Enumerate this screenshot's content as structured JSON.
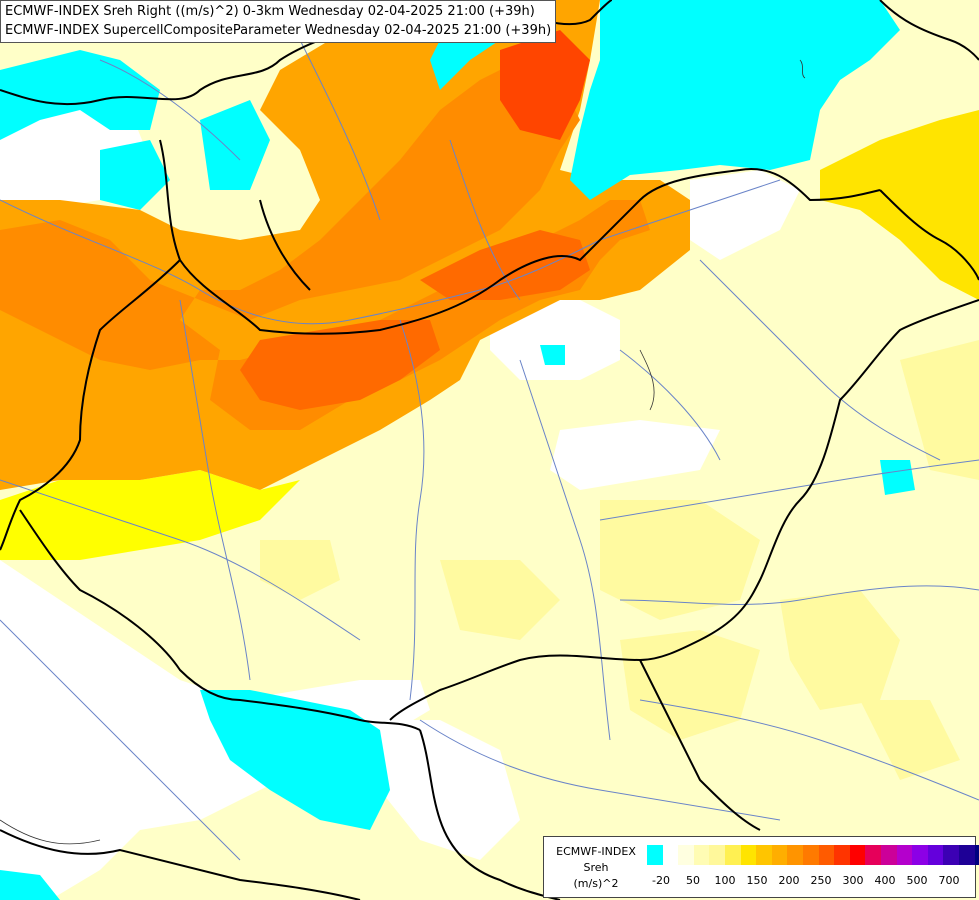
{
  "map": {
    "title_line1": "ECMWF-INDEX Sreh Right ((m/s)^2) 0-3km Wednesday 02-04-2025 21:00 (+39h)",
    "title_line2": "ECMWF-INDEX SupercellCompositeParameter Wednesday 02-04-2025 21:00 (+39h)"
  },
  "legend": {
    "model": "ECMWF-INDEX",
    "variable": "Sreh",
    "unit": "(m/s)^2",
    "ticks": [
      "-20",
      "50",
      "100",
      "150",
      "200",
      "250",
      "300",
      "400",
      "500",
      "700"
    ],
    "colors": [
      "#00ffff",
      "#ffffff",
      "#ffffe0",
      "#fffcb4",
      "#fff89b",
      "#fff052",
      "#ffe400",
      "#ffc500",
      "#ffae00",
      "#ff9400",
      "#ff7a00",
      "#ff5b00",
      "#ff3400",
      "#ff0000",
      "#e6005a",
      "#cc0099",
      "#b400cc",
      "#8c00e6",
      "#6400dc",
      "#3c00b4",
      "#1e0096",
      "#000080"
    ]
  },
  "colors": {
    "cyan": "#00ffff",
    "white": "#ffffff",
    "pale_yellow": "#ffffc8",
    "light_yellow": "#fffaa0",
    "yellow": "#ffff00",
    "yellow_orange": "#ffd700",
    "orange_light": "#ffa500",
    "orange": "#ff8c00",
    "orange_dark": "#ff6a00",
    "red_orange": "#ff4500"
  }
}
